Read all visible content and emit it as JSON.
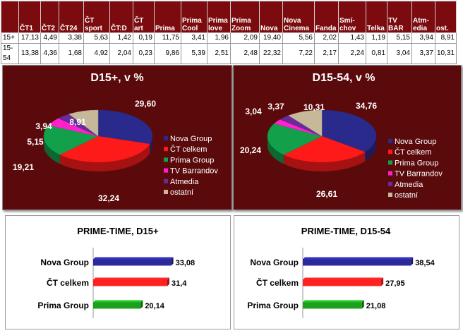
{
  "table": {
    "headers": [
      "",
      "ČT1",
      "ČT2",
      "ČT24",
      "ČT\nsport",
      "ČT:D",
      "ČT\nart",
      "Prima",
      "Prima\nCool",
      "Prima\nlove",
      "Prima\nZoom",
      "Nova",
      "Nova\nCinema",
      "Fanda",
      "Smí-\nchov",
      "Telka",
      "TV\nBAR",
      "Atm-\nedia",
      "ost."
    ],
    "rows": [
      {
        "label": "15+",
        "values": [
          "17,13",
          "4,49",
          "3,38",
          "5,63",
          "1,42",
          "0,19",
          "11,75",
          "3,41",
          "1,96",
          "2,09",
          "19,40",
          "5,56",
          "2,02",
          "1,43",
          "1,19",
          "5,15",
          "3,94",
          "8,91"
        ]
      },
      {
        "label": "15-54",
        "values": [
          "13,38",
          "4,36",
          "1,68",
          "4,92",
          "2,04",
          "0,23",
          "9,86",
          "5,39",
          "2,51",
          "2,48",
          "22,32",
          "7,22",
          "2,17",
          "2,24",
          "0,81",
          "3,04",
          "3,37",
          "10,31"
        ]
      }
    ]
  },
  "chart_data": [
    {
      "type": "pie",
      "title": "D15+, v %",
      "labels": [
        "Nova Group",
        "ČT celkem",
        "Prima Group",
        "TV Barrandov",
        "Atmedia",
        "ostatní"
      ],
      "values": [
        29.6,
        32.24,
        19.21,
        5.15,
        3.94,
        8.91
      ],
      "value_labels": [
        "29,60",
        "32,24",
        "19,21",
        "5,15",
        "3,94",
        "8,91"
      ],
      "colors": [
        "#2a2a8c",
        "#ff1a1a",
        "#13a04a",
        "#ff22cc",
        "#6a2a9a",
        "#c8b89a"
      ],
      "legend_position": "right"
    },
    {
      "type": "pie",
      "title": "D15-54, v %",
      "labels": [
        "Nova Group",
        "ČT celkem",
        "Prima Group",
        "TV Barrandov",
        "Atmedia",
        "ostatní"
      ],
      "values": [
        34.76,
        26.61,
        20.24,
        3.04,
        3.37,
        10.31
      ],
      "value_labels": [
        "34,76",
        "26,61",
        "20,24",
        "3,04",
        "3,37",
        "10,31"
      ],
      "colors": [
        "#2a2a8c",
        "#ff1a1a",
        "#13a04a",
        "#ff22cc",
        "#6a2a9a",
        "#c8b89a"
      ],
      "legend_position": "right"
    },
    {
      "type": "bar",
      "orientation": "horizontal",
      "title": "PRIME-TIME, D15+",
      "categories": [
        "Nova Group",
        "ČT celkem",
        "Prima Group"
      ],
      "values": [
        33.08,
        31.4,
        20.14
      ],
      "value_labels": [
        "33,08",
        "31,4",
        "20,14"
      ],
      "colors": [
        "#2a2a9a",
        "#ff2020",
        "#1aa01a"
      ],
      "xlim": [
        0,
        35
      ]
    },
    {
      "type": "bar",
      "orientation": "horizontal",
      "title": "PRIME-TIME, D15-54",
      "categories": [
        "Nova Group",
        "ČT celkem",
        "Prima Group"
      ],
      "values": [
        38.54,
        27.95,
        21.08
      ],
      "value_labels": [
        "38,54",
        "27,95",
        "21,08"
      ],
      "colors": [
        "#2a2a9a",
        "#ff2020",
        "#1aa01a"
      ],
      "xlim": [
        0,
        40
      ]
    }
  ]
}
